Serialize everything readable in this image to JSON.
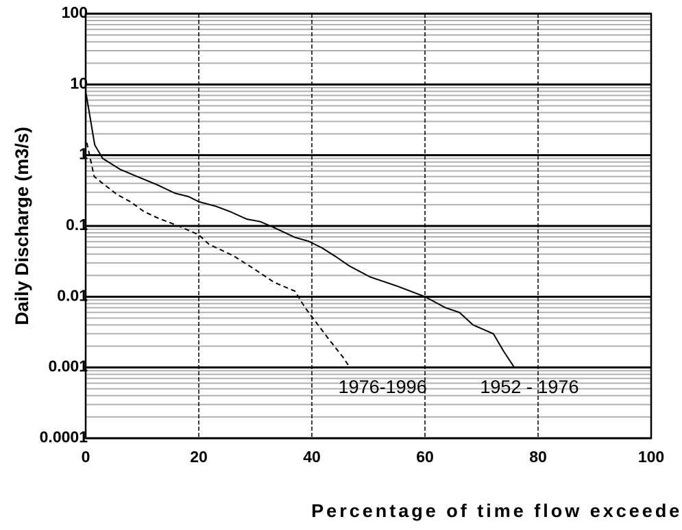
{
  "chart_data": {
    "type": "line",
    "x_label": "Percentage of time flow exceeded",
    "y_label": "Daily Discharge (m3/s)",
    "xlim": [
      0,
      100
    ],
    "xticks": [
      0,
      20,
      40,
      60,
      80,
      100
    ],
    "ylim": [
      0.0001,
      100
    ],
    "yticks": [
      100,
      10,
      1,
      0.1,
      0.01,
      0.001,
      0.0001
    ],
    "y_log": true,
    "grid": true,
    "minor_grid": true,
    "series": [
      {
        "name": "1952 - 1976",
        "color": "#000000",
        "dash": false,
        "x": [
          0,
          1.6,
          3,
          6.1,
          9.1,
          12.7,
          15.8,
          18.2,
          20,
          23,
          25.5,
          28.5,
          30.9,
          33.3,
          37,
          39.4,
          41.8,
          44.2,
          46.7,
          50.3,
          55.2,
          60,
          63.6,
          66.1,
          68.5,
          72.1,
          73.9,
          75.8
        ],
        "values": [
          8,
          1.4,
          0.9,
          0.63,
          0.5,
          0.38,
          0.29,
          0.26,
          0.22,
          0.19,
          0.16,
          0.125,
          0.115,
          0.095,
          0.069,
          0.061,
          0.049,
          0.037,
          0.027,
          0.019,
          0.014,
          0.01,
          0.007,
          0.006,
          0.004,
          0.003,
          0.0017,
          0.001
        ]
      },
      {
        "name": "1976-1996",
        "color": "#000000",
        "dash": true,
        "x": [
          0.2,
          1.5,
          3,
          5.5,
          7.9,
          10.3,
          12.7,
          16.4,
          20,
          21.8,
          26.1,
          29.7,
          33.3,
          37,
          38.8,
          40.6,
          43,
          45.5,
          46.7,
          48.8
        ],
        "values": [
          1.5,
          0.5,
          0.4,
          0.28,
          0.22,
          0.16,
          0.13,
          0.1,
          0.075,
          0.055,
          0.038,
          0.025,
          0.016,
          0.012,
          0.007,
          0.0045,
          0.0025,
          0.0014,
          0.001,
          0.001
        ]
      }
    ]
  }
}
